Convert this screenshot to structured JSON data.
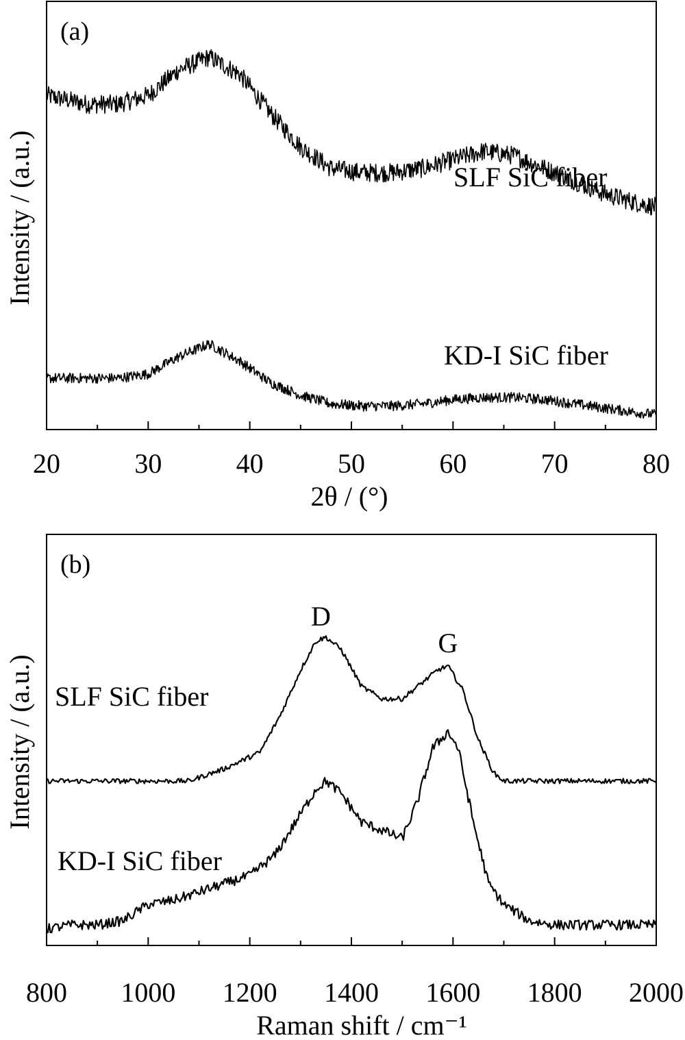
{
  "chart_data": [
    {
      "type": "line",
      "panel_label": "(a)",
      "xlabel": "2θ / (°)",
      "ylabel": "Intensity / (a.u.)",
      "xlim": [
        20,
        80
      ],
      "x_ticks": [
        20,
        30,
        40,
        50,
        60,
        70,
        80
      ],
      "y_ticks": false,
      "grid": false,
      "legend": "none (series labels placed next to curves)",
      "noise": "high-frequency noise on both curves",
      "series": [
        {
          "name": "SLF SiC fiber",
          "x": [
            20,
            24,
            27,
            30,
            33,
            36,
            39,
            42,
            45,
            48,
            51,
            54,
            57,
            60,
            63,
            66,
            69,
            72,
            75,
            78,
            80
          ],
          "y": [
            0.78,
            0.76,
            0.76,
            0.78,
            0.84,
            0.87,
            0.83,
            0.74,
            0.66,
            0.61,
            0.6,
            0.6,
            0.61,
            0.63,
            0.65,
            0.64,
            0.61,
            0.58,
            0.55,
            0.53,
            0.52
          ]
        },
        {
          "name": "KD-I SiC fiber",
          "x": [
            20,
            24,
            27,
            30,
            33,
            36,
            39,
            42,
            45,
            48,
            51,
            54,
            57,
            60,
            63,
            66,
            69,
            72,
            75,
            78,
            80
          ],
          "y": [
            0.12,
            0.12,
            0.12,
            0.13,
            0.17,
            0.2,
            0.16,
            0.11,
            0.08,
            0.06,
            0.055,
            0.055,
            0.06,
            0.07,
            0.075,
            0.075,
            0.07,
            0.06,
            0.05,
            0.04,
            0.035
          ]
        }
      ],
      "annotations": []
    },
    {
      "type": "line",
      "panel_label": "(b)",
      "xlabel": "Raman shift / cm⁻¹",
      "ylabel": "Intensity / (a.u.)",
      "xlim": [
        800,
        2000
      ],
      "x_ticks": [
        800,
        1000,
        1200,
        1400,
        1600,
        1800,
        2000
      ],
      "y_ticks": false,
      "grid": false,
      "legend": "none (series labels placed next to curves)",
      "noise": "small noise on both curves",
      "series": [
        {
          "name": "SLF SiC fiber",
          "x": [
            800,
            900,
            1000,
            1080,
            1150,
            1220,
            1260,
            1300,
            1330,
            1350,
            1380,
            1420,
            1460,
            1500,
            1540,
            1570,
            1590,
            1620,
            1650,
            1680,
            1700,
            1800,
            1900,
            2000
          ],
          "y": [
            0.4,
            0.4,
            0.4,
            0.4,
            0.43,
            0.47,
            0.56,
            0.67,
            0.74,
            0.75,
            0.72,
            0.63,
            0.6,
            0.6,
            0.64,
            0.67,
            0.68,
            0.62,
            0.5,
            0.42,
            0.4,
            0.4,
            0.4,
            0.4
          ]
        },
        {
          "name": "KD-I SiC fiber",
          "x": [
            800,
            850,
            900,
            950,
            1000,
            1050,
            1100,
            1150,
            1200,
            1250,
            1300,
            1330,
            1350,
            1380,
            1420,
            1460,
            1500,
            1530,
            1560,
            1590,
            1610,
            1640,
            1670,
            1700,
            1750,
            1800,
            1900,
            2000
          ],
          "y": [
            0.04,
            0.05,
            0.05,
            0.06,
            0.1,
            0.11,
            0.13,
            0.15,
            0.17,
            0.22,
            0.32,
            0.38,
            0.4,
            0.37,
            0.3,
            0.28,
            0.26,
            0.35,
            0.48,
            0.52,
            0.48,
            0.3,
            0.15,
            0.1,
            0.06,
            0.05,
            0.05,
            0.05
          ]
        }
      ],
      "annotations": [
        {
          "text": "D",
          "x": 1340
        },
        {
          "text": "G",
          "x": 1590
        }
      ]
    }
  ]
}
